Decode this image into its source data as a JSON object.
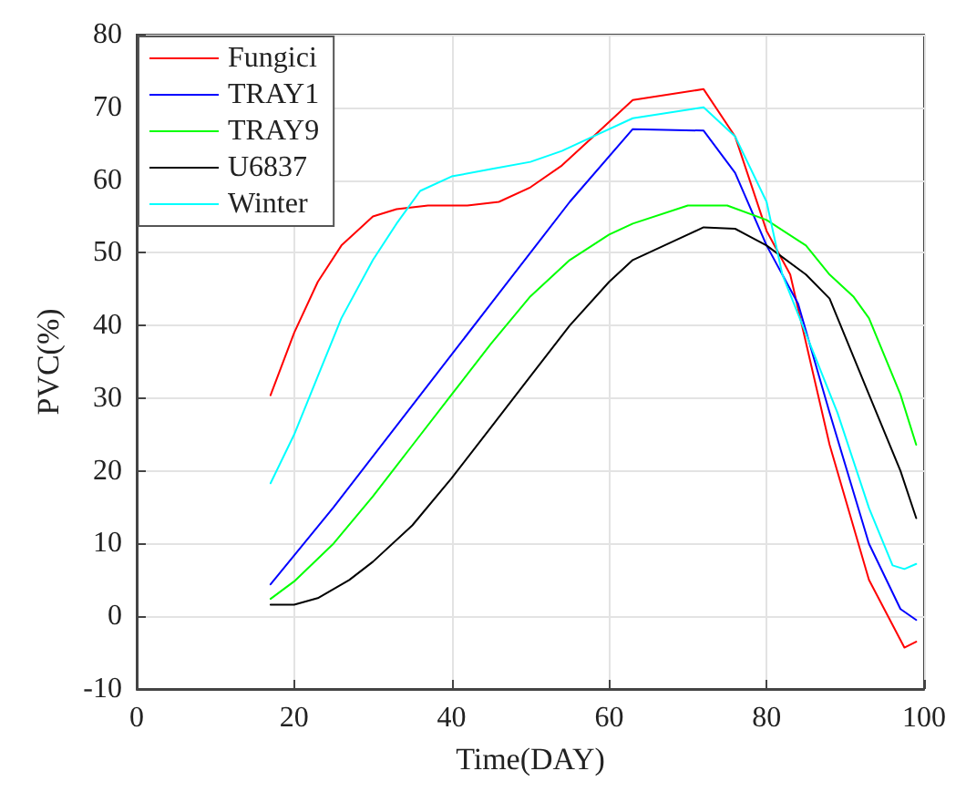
{
  "chart_data": {
    "type": "line",
    "xlabel": "Time(DAY)",
    "ylabel": "PVC(%)",
    "xlim": [
      0,
      100
    ],
    "xticks": [
      0,
      20,
      40,
      60,
      80,
      100
    ],
    "ylim": [
      -10,
      80
    ],
    "yticks": [
      -10,
      0,
      10,
      20,
      30,
      40,
      50,
      60,
      70,
      80
    ],
    "grid": true,
    "legend": "top left",
    "marker": "none",
    "line_style": "solid",
    "series": [
      {
        "name": "Fungici",
        "color": "#ff0000",
        "x": [
          17,
          20,
          23,
          26,
          30,
          33,
          37,
          42,
          46,
          50,
          54,
          58,
          63,
          72,
          76,
          80,
          83,
          88,
          93,
          97.5,
          99
        ],
        "values": [
          30.4,
          39,
          46,
          51,
          55,
          56,
          56.5,
          56.5,
          57,
          59,
          62,
          66,
          71,
          72.5,
          66,
          53,
          47,
          23.6,
          5,
          -4.3,
          -3.5
        ]
      },
      {
        "name": "TRAY1",
        "color": "#0000ff",
        "x": [
          17,
          25,
          35,
          45,
          55,
          63,
          72,
          76,
          80,
          84,
          88,
          93,
          97,
          99
        ],
        "values": [
          4.4,
          15,
          29,
          43,
          57,
          67,
          66.8,
          61,
          51,
          43,
          28,
          10,
          1,
          -0.5
        ]
      },
      {
        "name": "TRAY9",
        "color": "#00ff00",
        "x": [
          17,
          20,
          25,
          30,
          35,
          40,
          45,
          50,
          55,
          60,
          63,
          70,
          75,
          80,
          85,
          88,
          91,
          93,
          97,
          99
        ],
        "values": [
          2.4,
          4.8,
          10,
          16.5,
          23.5,
          30.5,
          37.5,
          44,
          49,
          52.5,
          54,
          56.5,
          56.5,
          54.5,
          51,
          47,
          44,
          41,
          30.5,
          23.6
        ]
      },
      {
        "name": "U6837",
        "color": "#000000",
        "x": [
          17,
          20,
          23,
          27,
          30,
          35,
          40,
          45,
          50,
          55,
          60,
          63,
          68,
          72,
          76,
          80,
          85,
          88,
          93,
          97,
          99
        ],
        "values": [
          1.6,
          1.6,
          2.5,
          5,
          7.5,
          12.5,
          19,
          26,
          33,
          40,
          46,
          49,
          51.5,
          53.5,
          53.3,
          51,
          47,
          43.7,
          30.5,
          20,
          13.5
        ]
      },
      {
        "name": "Winter",
        "color": "#00ffff",
        "x": [
          17,
          20,
          23,
          26,
          30,
          33,
          36,
          40,
          45,
          50,
          54,
          58,
          63,
          72,
          76,
          80,
          82,
          89,
          93,
          96,
          97.5,
          99
        ],
        "values": [
          18.3,
          25,
          33,
          41,
          49,
          54,
          58.5,
          60.5,
          61.5,
          62.5,
          64,
          66,
          68.5,
          70,
          66,
          57,
          47,
          28,
          14.9,
          7,
          6.5,
          7.2
        ]
      }
    ]
  }
}
